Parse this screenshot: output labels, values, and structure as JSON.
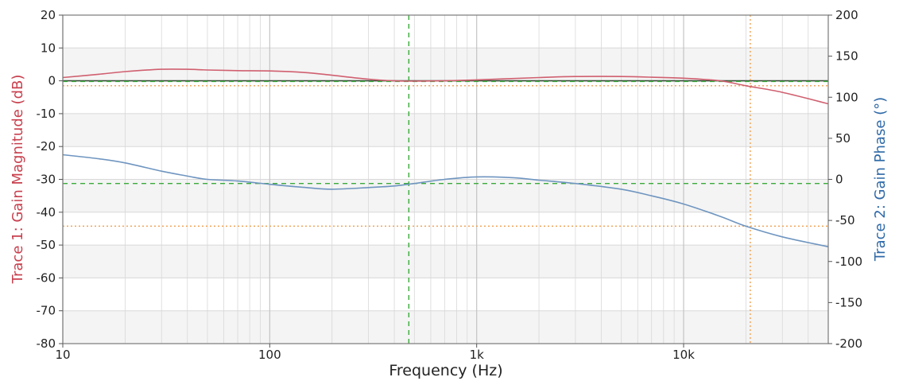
{
  "chart_data": {
    "type": "line",
    "title": "",
    "xlabel": "Frequency (Hz)",
    "ylabel_left": "Trace 1: Gain Magnitude (dB)",
    "ylabel_right": "Trace 2: Gain Phase (°)",
    "x_scale": "log",
    "xlim": [
      10,
      50000
    ],
    "ylim_left": [
      -80,
      20
    ],
    "ylim_right": [
      -200,
      200
    ],
    "x_tick_labels": [
      {
        "value": 10,
        "label": "10"
      },
      {
        "value": 100,
        "label": "100"
      },
      {
        "value": 1000,
        "label": "1k"
      },
      {
        "value": 10000,
        "label": "10k"
      }
    ],
    "y_left_tick_labels": [
      "20",
      "10",
      "0",
      "-10",
      "-20",
      "-30",
      "-40",
      "-50",
      "-60",
      "-70",
      "-80"
    ],
    "y_left_ticks": [
      20,
      10,
      0,
      -10,
      -20,
      -30,
      -40,
      -50,
      -60,
      -70,
      -80
    ],
    "y_right_tick_labels": [
      "200",
      "150",
      "100",
      "50",
      "0",
      "-50",
      "-100",
      "-150",
      "-200"
    ],
    "y_right_ticks": [
      200,
      150,
      100,
      50,
      0,
      -50,
      -100,
      -150,
      -200
    ],
    "grid": true,
    "colors": {
      "trace1": "#d06070",
      "trace2": "#6f95c0",
      "left_axis_label": "#c8404e",
      "right_axis_label": "#2f6aa8",
      "marker_green": "#3aaa3a",
      "marker_orange": "#f0a050",
      "band": "#f4f4f4",
      "grid": "#d8d8d8",
      "reference_line": "#3a4a3a"
    },
    "series": [
      {
        "axis": "left",
        "x": [
          10,
          15,
          20,
          30,
          40,
          50,
          70,
          100,
          150,
          200,
          300,
          400,
          500,
          700,
          1000,
          2000,
          3000,
          5000,
          7000,
          10000,
          15000,
          20000,
          30000,
          50000
        ],
        "values": [
          1.0,
          2.0,
          2.8,
          3.5,
          3.5,
          3.3,
          3.1,
          3.0,
          2.5,
          1.7,
          0.5,
          0.0,
          -0.1,
          0.0,
          0.3,
          1.0,
          1.3,
          1.3,
          1.1,
          0.8,
          0.0,
          -1.5,
          -3.5,
          -7.0
        ]
      },
      {
        "axis": "right",
        "x": [
          10,
          15,
          20,
          30,
          40,
          50,
          70,
          100,
          150,
          200,
          300,
          400,
          500,
          700,
          1000,
          1500,
          2000,
          3000,
          5000,
          7000,
          10000,
          15000,
          20000,
          30000,
          50000
        ],
        "values": [
          30,
          25,
          20,
          10,
          4,
          0,
          -2,
          -6,
          -10,
          -12,
          -10,
          -8,
          -5,
          0,
          3,
          2,
          -1,
          -5,
          -12,
          -20,
          -30,
          -45,
          -57,
          -70,
          -82
        ]
      }
    ],
    "reference_lines": [
      {
        "orientation": "horizontal",
        "axis": "left",
        "value": 0,
        "style": "solid",
        "color_key": "reference_line"
      }
    ],
    "markers": [
      {
        "orientation": "vertical",
        "x": 470,
        "style": "dashed",
        "color_key": "marker_green"
      },
      {
        "orientation": "horizontal",
        "axis": "left",
        "value": -0.2,
        "style": "dashed",
        "color_key": "marker_green"
      },
      {
        "orientation": "horizontal",
        "axis": "right",
        "value": -5,
        "style": "dashed",
        "color_key": "marker_green"
      },
      {
        "orientation": "vertical",
        "x": 21000,
        "style": "dotted",
        "color_key": "marker_orange"
      },
      {
        "orientation": "horizontal",
        "axis": "left",
        "value": -1.5,
        "style": "dotted",
        "color_key": "marker_orange"
      },
      {
        "orientation": "horizontal",
        "axis": "right",
        "value": -57,
        "style": "dotted",
        "color_key": "marker_orange"
      }
    ]
  }
}
